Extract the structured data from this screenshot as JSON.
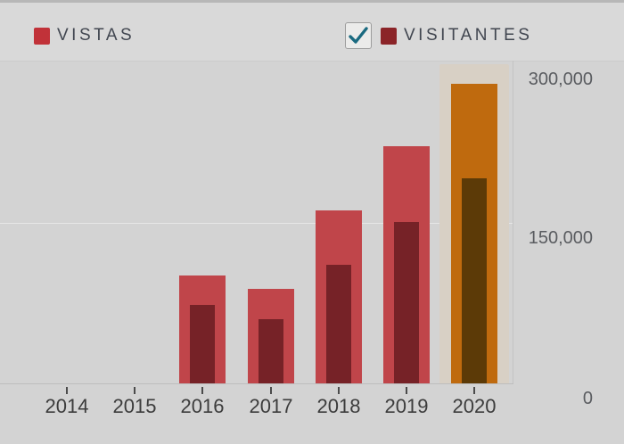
{
  "legend": {
    "visitantes_checkbox_checked": true,
    "check_color": "#1a6a80"
  },
  "colors": {
    "vistas": "#c0454a",
    "vistas_highlight": "#bf6a0e",
    "visitantes": "#762227",
    "visitantes_highlight": "#5c3a07",
    "legend_vistas_swatch": "#c13239",
    "legend_visitantes_swatch": "#8b2428",
    "highlight_band": "#d8d0c5"
  },
  "chart_data": {
    "type": "bar",
    "title": "",
    "categories": [
      "2014",
      "2015",
      "2016",
      "2017",
      "2018",
      "2019",
      "2020"
    ],
    "series": [
      {
        "name": "VISTAS",
        "color": "#c0454a",
        "highlight_color": "#bf6a0e",
        "values": [
          0,
          0,
          101000,
          88000,
          162000,
          222000,
          280000
        ]
      },
      {
        "name": "VISITANTES",
        "color": "#762227",
        "highlight_color": "#5c3a07",
        "values": [
          0,
          0,
          73000,
          60000,
          111000,
          151000,
          192000
        ]
      }
    ],
    "highlighted_category": "2020",
    "ylim": [
      0,
      300000
    ],
    "y_ticks": [
      "300,000",
      "150,000",
      "0"
    ],
    "xlabel": "",
    "ylabel": "",
    "legend_position": "top",
    "grid": "minimal"
  }
}
